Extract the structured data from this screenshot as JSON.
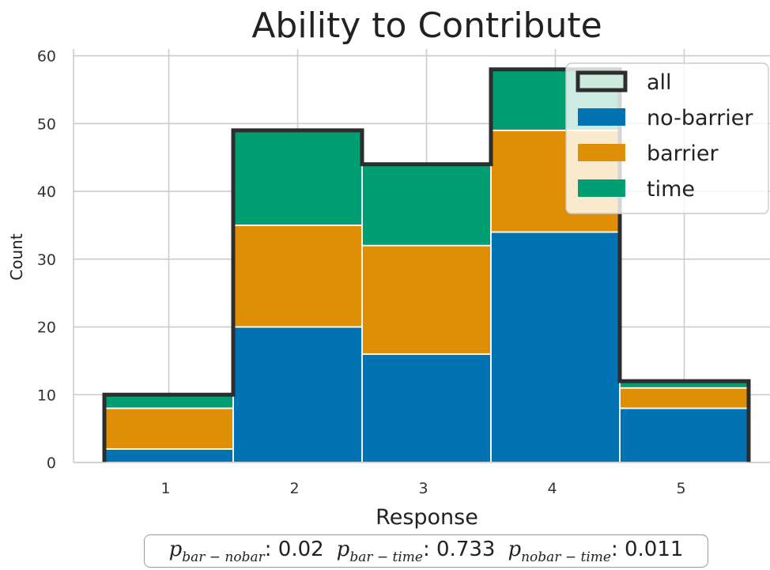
{
  "chart_data": {
    "type": "bar",
    "stacked": true,
    "title": "Ability to Contribute",
    "xlabel": "Response",
    "ylabel": "Count",
    "categories": [
      "1",
      "2",
      "3",
      "4",
      "5"
    ],
    "yticks": [
      "0",
      "10",
      "20",
      "30",
      "40",
      "50",
      "60"
    ],
    "ylim": [
      0,
      61
    ],
    "grid": true,
    "legend_position": "top-right",
    "series": [
      {
        "name": "no-barrier",
        "values": [
          2,
          20,
          16,
          34,
          8
        ],
        "color": "#0173b2"
      },
      {
        "name": "barrier",
        "values": [
          6,
          15,
          16,
          15,
          3
        ],
        "color": "#de8f05"
      },
      {
        "name": "time",
        "values": [
          2,
          14,
          12,
          9,
          1
        ],
        "color": "#029e73"
      }
    ],
    "all": {
      "name": "all",
      "values": [
        10,
        49,
        44,
        58,
        12
      ],
      "color": "#2d2d2d",
      "fill": "#cdeade"
    },
    "annotation": [
      {
        "var": "p",
        "sub": "bar − nobar",
        "value": ": 0.02"
      },
      {
        "var": "p",
        "sub": "bar − time",
        "value": ": 0.733"
      },
      {
        "var": "p",
        "sub": "nobar − time",
        "value": ": 0.011"
      }
    ]
  }
}
